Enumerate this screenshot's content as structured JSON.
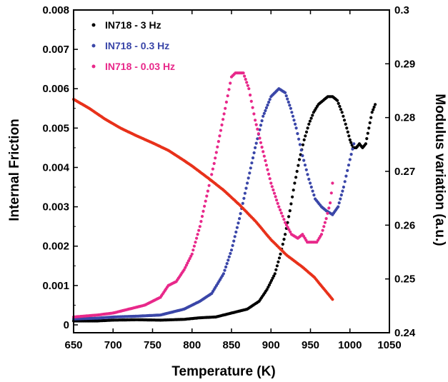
{
  "chart_data": {
    "type": "scatter",
    "xlabel": "Temperature (K)",
    "ylabel_left": "Internal Friction",
    "ylabel_right": "Modulus variation (a.u.)",
    "xlim": [
      650,
      1050
    ],
    "ylim_left": [
      -0.0002,
      0.008
    ],
    "ylim_right": [
      0.24,
      0.3
    ],
    "x_ticks": [
      "650",
      "700",
      "750",
      "800",
      "850",
      "900",
      "950",
      "1000",
      "1050"
    ],
    "y_left_ticks": [
      "0",
      "0.001",
      "0.002",
      "0.003",
      "0.004",
      "0.005",
      "0.006",
      "0.007",
      "0.008"
    ],
    "y_right_ticks": [
      "0.24",
      "0.25",
      "0.26",
      "0.27",
      "0.28",
      "0.29",
      "0.3"
    ],
    "legend_position": "top-left",
    "series": [
      {
        "name": "IN718 - 3 Hz",
        "color": "#000000",
        "axis": "left",
        "points": [
          [
            650,
            0.0001
          ],
          [
            680,
            0.0001
          ],
          [
            700,
            0.00012
          ],
          [
            730,
            0.00013
          ],
          [
            760,
            0.00012
          ],
          [
            790,
            0.00014
          ],
          [
            810,
            0.00018
          ],
          [
            830,
            0.0002
          ],
          [
            850,
            0.0003
          ],
          [
            870,
            0.0004
          ],
          [
            885,
            0.0006
          ],
          [
            895,
            0.0009
          ],
          [
            905,
            0.0013
          ],
          [
            912,
            0.0018
          ],
          [
            918,
            0.0023
          ],
          [
            924,
            0.0029
          ],
          [
            930,
            0.0036
          ],
          [
            936,
            0.0042
          ],
          [
            942,
            0.0047
          ],
          [
            948,
            0.0051
          ],
          [
            954,
            0.0054
          ],
          [
            960,
            0.0056
          ],
          [
            966,
            0.0057
          ],
          [
            972,
            0.0058
          ],
          [
            978,
            0.0058
          ],
          [
            984,
            0.0057
          ],
          [
            990,
            0.0054
          ],
          [
            996,
            0.005
          ],
          [
            1000,
            0.0047
          ],
          [
            1004,
            0.0045
          ],
          [
            1008,
            0.0045
          ],
          [
            1012,
            0.0046
          ],
          [
            1016,
            0.0045
          ],
          [
            1020,
            0.0046
          ],
          [
            1024,
            0.005
          ],
          [
            1028,
            0.0054
          ],
          [
            1032,
            0.0056
          ]
        ]
      },
      {
        "name": "IN718 - 0.3 Hz",
        "color": "#3a46a8",
        "axis": "left",
        "points": [
          [
            650,
            0.00015
          ],
          [
            680,
            0.00017
          ],
          [
            700,
            0.0002
          ],
          [
            730,
            0.00022
          ],
          [
            760,
            0.00025
          ],
          [
            790,
            0.0004
          ],
          [
            810,
            0.0006
          ],
          [
            825,
            0.0008
          ],
          [
            840,
            0.0013
          ],
          [
            850,
            0.0019
          ],
          [
            860,
            0.0027
          ],
          [
            870,
            0.0036
          ],
          [
            880,
            0.0045
          ],
          [
            890,
            0.0053
          ],
          [
            900,
            0.0058
          ],
          [
            910,
            0.006
          ],
          [
            918,
            0.0059
          ],
          [
            925,
            0.0055
          ],
          [
            932,
            0.005
          ],
          [
            940,
            0.0043
          ],
          [
            948,
            0.0037
          ],
          [
            956,
            0.0032
          ],
          [
            964,
            0.003
          ],
          [
            970,
            0.0029
          ],
          [
            978,
            0.0028
          ],
          [
            985,
            0.003
          ],
          [
            992,
            0.0035
          ],
          [
            1000,
            0.0042
          ],
          [
            1005,
            0.0046
          ]
        ]
      },
      {
        "name": "IN718 - 0.03 Hz",
        "color": "#e8288a",
        "axis": "left",
        "points": [
          [
            650,
            0.0002
          ],
          [
            680,
            0.00025
          ],
          [
            700,
            0.0003
          ],
          [
            720,
            0.0004
          ],
          [
            740,
            0.0005
          ],
          [
            760,
            0.0007
          ],
          [
            770,
            0.001
          ],
          [
            780,
            0.0011
          ],
          [
            790,
            0.0014
          ],
          [
            800,
            0.0018
          ],
          [
            810,
            0.0025
          ],
          [
            820,
            0.0034
          ],
          [
            828,
            0.0041
          ],
          [
            835,
            0.0048
          ],
          [
            842,
            0.0055
          ],
          [
            850,
            0.0063
          ],
          [
            855,
            0.0064
          ],
          [
            865,
            0.0064
          ],
          [
            872,
            0.006
          ],
          [
            880,
            0.0052
          ],
          [
            890,
            0.0044
          ],
          [
            900,
            0.0036
          ],
          [
            910,
            0.003
          ],
          [
            918,
            0.0026
          ],
          [
            926,
            0.0023
          ],
          [
            934,
            0.0022
          ],
          [
            940,
            0.0023
          ],
          [
            946,
            0.0021
          ],
          [
            952,
            0.0021
          ],
          [
            958,
            0.0021
          ],
          [
            964,
            0.0023
          ],
          [
            970,
            0.0027
          ],
          [
            975,
            0.0031
          ],
          [
            978,
            0.0036
          ]
        ]
      },
      {
        "name": "",
        "color": "#e8311a",
        "axis": "right",
        "points": [
          [
            650,
            0.2834
          ],
          [
            670,
            0.2817
          ],
          [
            690,
            0.2797
          ],
          [
            710,
            0.278
          ],
          [
            730,
            0.2766
          ],
          [
            750,
            0.2753
          ],
          [
            770,
            0.2739
          ],
          [
            790,
            0.272
          ],
          [
            800,
            0.271
          ],
          [
            820,
            0.2688
          ],
          [
            840,
            0.2665
          ],
          [
            860,
            0.2638
          ],
          [
            880,
            0.2608
          ],
          [
            900,
            0.2573
          ],
          [
            920,
            0.2544
          ],
          [
            940,
            0.2522
          ],
          [
            955,
            0.2503
          ],
          [
            965,
            0.2485
          ],
          [
            978,
            0.2462
          ]
        ]
      }
    ]
  }
}
